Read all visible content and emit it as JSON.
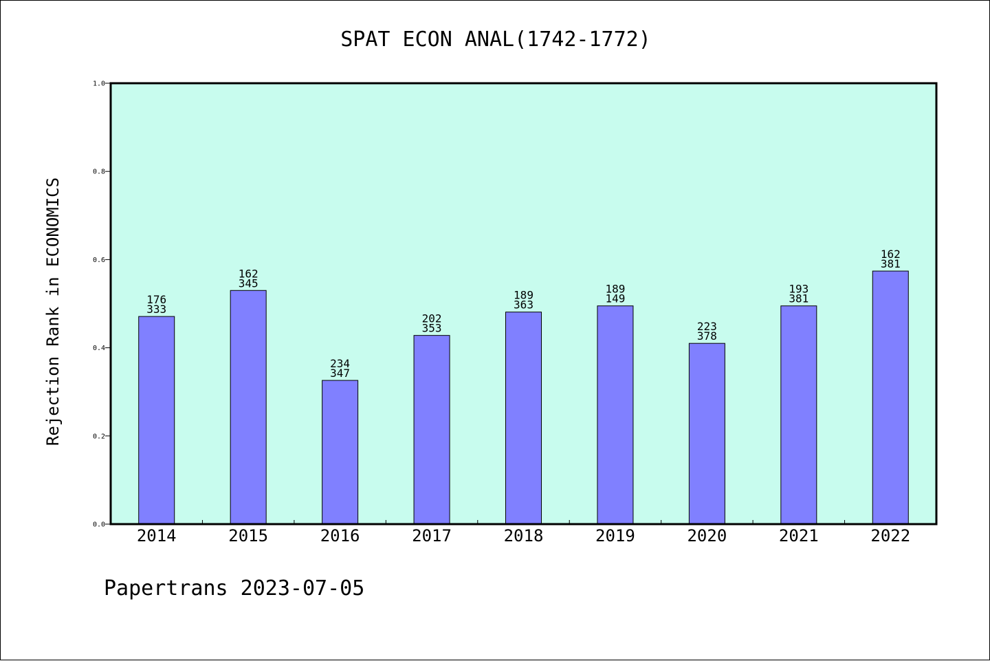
{
  "chart_data": {
    "type": "bar",
    "title": "SPAT ECON ANAL(1742-1772)",
    "xlabel": "",
    "ylabel": "Rejection Rank in ECONOMICS",
    "ylim": [
      0,
      1.0
    ],
    "yticks": [
      "0.0",
      "0.2",
      "0.4",
      "0.6",
      "0.8",
      "1.0"
    ],
    "grid": false,
    "categories": [
      "2014",
      "2015",
      "2016",
      "2017",
      "2018",
      "2019",
      "2020",
      "2021",
      "2022"
    ],
    "values": [
      0.471,
      0.53,
      0.326,
      0.428,
      0.481,
      0.495,
      0.41,
      0.495,
      0.574
    ],
    "labels_top": [
      "176",
      "162",
      "234",
      "202",
      "189",
      "189",
      "223",
      "193",
      "162"
    ],
    "labels_bottom": [
      "333",
      "345",
      "347",
      "353",
      "363",
      "149",
      "378",
      "381",
      "381"
    ],
    "colors": {
      "plot_background": "#c8fcee",
      "bar_fill": "#8080ff",
      "bar_stroke": "#000000"
    }
  },
  "footer": "Papertrans 2023-07-05"
}
